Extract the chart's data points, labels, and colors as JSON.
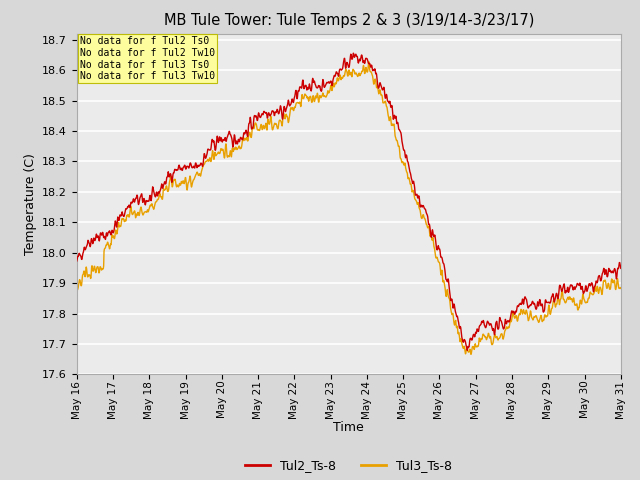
{
  "title": "MB Tule Tower: Tule Temps 2 & 3 (3/19/14-3/23/17)",
  "xlabel": "Time",
  "ylabel": "Temperature (C)",
  "ylim": [
    17.6,
    18.72
  ],
  "yticks": [
    17.6,
    17.7,
    17.8,
    17.9,
    18.0,
    18.1,
    18.2,
    18.3,
    18.4,
    18.5,
    18.6,
    18.7
  ],
  "line1_color": "#cc0000",
  "line2_color": "#e8a000",
  "line1_label": "Tul2_Ts-8",
  "line2_label": "Tul3_Ts-8",
  "line_width": 1.0,
  "fig_bg_color": "#d8d8d8",
  "plot_bg_color": "#ebebeb",
  "grid_color": "#ffffff",
  "annotation_text": "No data for f Tul2 Ts0\nNo data for f Tul2 Tw10\nNo data for f Tul3 Ts0\nNo data for f Tul3 Tw10",
  "annotation_bg": "#ffff99",
  "n_points": 1500,
  "x_start": 16,
  "x_end": 31,
  "xtick_positions": [
    16,
    17,
    18,
    19,
    20,
    21,
    22,
    23,
    24,
    25,
    26,
    27,
    28,
    29,
    30,
    31
  ],
  "xtick_labels": [
    "May 16",
    "May 17",
    "May 18",
    "May 19",
    "May 20",
    "May 21",
    "May 22",
    "May 23",
    "May 24",
    "May 25",
    "May 26",
    "May 27",
    "May 28",
    "May 29",
    "May 30",
    "May 31"
  ]
}
